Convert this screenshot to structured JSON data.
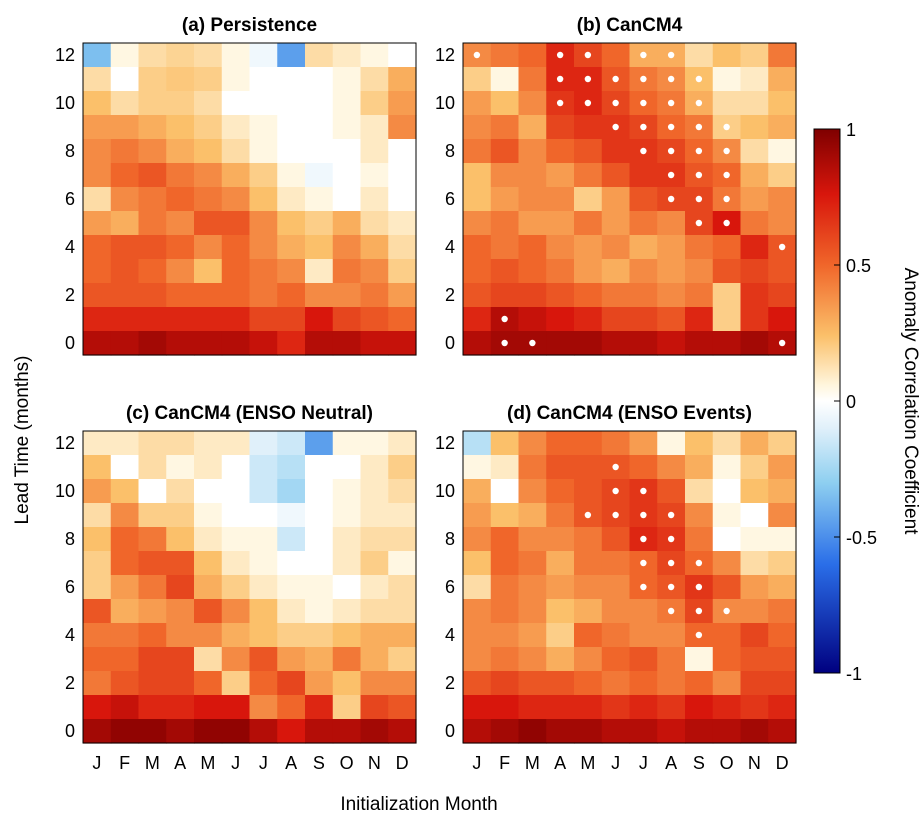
{
  "figure": {
    "ylabel": "Lead Time (months)",
    "xlabel": "Initialization Month",
    "colorbar_label": "Anomaly Correlation Coefficient"
  },
  "chart_data": {
    "type": "heatmap",
    "months": [
      "J",
      "F",
      "M",
      "A",
      "M",
      "J",
      "J",
      "A",
      "S",
      "O",
      "N",
      "D"
    ],
    "yticks": [
      "0",
      "2",
      "4",
      "6",
      "8",
      "10",
      "12"
    ],
    "ylim": [
      0,
      12
    ],
    "colorbar": {
      "ticks": [
        "1",
        "0.5",
        "0",
        "-0.5",
        "-1"
      ],
      "min": -1,
      "max": 1,
      "colormap": "blue-white-red"
    },
    "panels": [
      {
        "title": "(a) Persistence",
        "note": "rows from lead 12 (top) to lead 0 (bottom)",
        "values": [
          [
            -0.35,
            0.05,
            0.15,
            0.18,
            0.15,
            0.05,
            -0.05,
            -0.45,
            0.15,
            0.1,
            0.05,
            0.0
          ],
          [
            0.15,
            0.0,
            0.2,
            0.22,
            0.2,
            0.05,
            0.0,
            0.0,
            0.0,
            0.05,
            0.15,
            0.3
          ],
          [
            0.25,
            0.15,
            0.2,
            0.2,
            0.15,
            0.0,
            0.0,
            0.0,
            0.0,
            0.05,
            0.2,
            0.35
          ],
          [
            0.35,
            0.35,
            0.3,
            0.25,
            0.2,
            0.1,
            0.05,
            0.0,
            0.0,
            0.05,
            0.1,
            0.4
          ],
          [
            0.4,
            0.45,
            0.4,
            0.3,
            0.25,
            0.15,
            0.05,
            0.0,
            0.0,
            0.0,
            0.1,
            0.0
          ],
          [
            0.4,
            0.5,
            0.55,
            0.45,
            0.4,
            0.3,
            0.2,
            0.05,
            -0.05,
            0.0,
            0.05,
            0.0
          ],
          [
            0.15,
            0.4,
            0.45,
            0.5,
            0.45,
            0.4,
            0.25,
            0.1,
            0.05,
            0.0,
            0.1,
            0.0
          ],
          [
            0.35,
            0.3,
            0.45,
            0.4,
            0.55,
            0.55,
            0.4,
            0.25,
            0.2,
            0.3,
            0.15,
            0.1
          ],
          [
            0.5,
            0.55,
            0.55,
            0.5,
            0.4,
            0.5,
            0.4,
            0.3,
            0.25,
            0.4,
            0.3,
            0.15
          ],
          [
            0.5,
            0.55,
            0.5,
            0.4,
            0.25,
            0.5,
            0.45,
            0.4,
            0.1,
            0.45,
            0.4,
            0.2
          ],
          [
            0.55,
            0.55,
            0.55,
            0.5,
            0.5,
            0.5,
            0.45,
            0.5,
            0.4,
            0.4,
            0.45,
            0.35
          ],
          [
            0.7,
            0.7,
            0.7,
            0.7,
            0.7,
            0.7,
            0.6,
            0.6,
            0.75,
            0.6,
            0.55,
            0.5
          ],
          [
            0.85,
            0.85,
            0.9,
            0.85,
            0.85,
            0.85,
            0.8,
            0.7,
            0.85,
            0.85,
            0.8,
            0.8
          ]
        ],
        "dots": []
      },
      {
        "title": "(b) CanCM4",
        "values": [
          [
            0.4,
            0.45,
            0.5,
            0.7,
            0.6,
            0.5,
            0.3,
            0.3,
            0.15,
            0.25,
            0.2,
            0.45
          ],
          [
            0.2,
            0.05,
            0.45,
            0.7,
            0.7,
            0.55,
            0.45,
            0.4,
            0.25,
            0.05,
            0.1,
            0.3
          ],
          [
            0.35,
            0.25,
            0.4,
            0.65,
            0.7,
            0.6,
            0.5,
            0.45,
            0.3,
            0.15,
            0.15,
            0.25
          ],
          [
            0.4,
            0.45,
            0.3,
            0.6,
            0.65,
            0.65,
            0.6,
            0.5,
            0.45,
            0.2,
            0.25,
            0.3
          ],
          [
            0.45,
            0.55,
            0.4,
            0.5,
            0.55,
            0.65,
            0.65,
            0.6,
            0.5,
            0.4,
            0.15,
            0.05
          ],
          [
            0.25,
            0.4,
            0.4,
            0.35,
            0.45,
            0.55,
            0.65,
            0.65,
            0.55,
            0.5,
            0.3,
            0.2
          ],
          [
            0.25,
            0.35,
            0.4,
            0.4,
            0.2,
            0.35,
            0.55,
            0.6,
            0.6,
            0.45,
            0.35,
            0.4
          ],
          [
            0.4,
            0.45,
            0.35,
            0.35,
            0.45,
            0.35,
            0.45,
            0.4,
            0.6,
            0.75,
            0.45,
            0.4
          ],
          [
            0.5,
            0.45,
            0.5,
            0.4,
            0.35,
            0.4,
            0.3,
            0.35,
            0.45,
            0.5,
            0.7,
            0.55
          ],
          [
            0.5,
            0.55,
            0.5,
            0.45,
            0.35,
            0.3,
            0.4,
            0.35,
            0.4,
            0.55,
            0.6,
            0.55
          ],
          [
            0.55,
            0.6,
            0.6,
            0.55,
            0.5,
            0.45,
            0.45,
            0.4,
            0.45,
            0.2,
            0.65,
            0.6
          ],
          [
            0.7,
            0.85,
            0.8,
            0.75,
            0.7,
            0.6,
            0.6,
            0.55,
            0.7,
            0.2,
            0.65,
            0.75
          ],
          [
            0.85,
            0.9,
            0.9,
            0.9,
            0.9,
            0.85,
            0.85,
            0.8,
            0.85,
            0.85,
            0.9,
            0.85
          ]
        ],
        "dots": [
          [
            12,
            0
          ],
          [
            12,
            3
          ],
          [
            12,
            4
          ],
          [
            12,
            6
          ],
          [
            12,
            7
          ],
          [
            11,
            3
          ],
          [
            11,
            4
          ],
          [
            11,
            5
          ],
          [
            11,
            6
          ],
          [
            11,
            7
          ],
          [
            11,
            8
          ],
          [
            10,
            3
          ],
          [
            10,
            4
          ],
          [
            10,
            5
          ],
          [
            10,
            6
          ],
          [
            10,
            7
          ],
          [
            10,
            8
          ],
          [
            9,
            5
          ],
          [
            9,
            6
          ],
          [
            9,
            7
          ],
          [
            9,
            8
          ],
          [
            9,
            9
          ],
          [
            8,
            6
          ],
          [
            8,
            7
          ],
          [
            8,
            8
          ],
          [
            8,
            9
          ],
          [
            7,
            7
          ],
          [
            7,
            8
          ],
          [
            7,
            9
          ],
          [
            6,
            7
          ],
          [
            6,
            8
          ],
          [
            6,
            9
          ],
          [
            5,
            8
          ],
          [
            5,
            9
          ],
          [
            4,
            11
          ],
          [
            1,
            1
          ],
          [
            0,
            1
          ],
          [
            0,
            2
          ],
          [
            0,
            11
          ]
        ]
      },
      {
        "title": "(c) CanCM4 (ENSO Neutral)",
        "values": [
          [
            0.1,
            0.1,
            0.15,
            0.15,
            0.1,
            0.1,
            -0.1,
            -0.15,
            -0.45,
            0.05,
            0.05,
            0.1
          ],
          [
            0.25,
            0.0,
            0.15,
            0.05,
            0.1,
            0.0,
            -0.15,
            -0.2,
            0.0,
            0.0,
            0.1,
            0.2
          ],
          [
            0.35,
            0.25,
            0.0,
            0.15,
            0.0,
            0.0,
            -0.15,
            -0.25,
            0.0,
            0.05,
            0.1,
            0.15
          ],
          [
            0.15,
            0.4,
            0.2,
            0.2,
            0.05,
            0.0,
            0.0,
            -0.05,
            0.0,
            0.05,
            0.1,
            0.1
          ],
          [
            0.25,
            0.5,
            0.45,
            0.25,
            0.1,
            0.05,
            0.05,
            -0.15,
            0.0,
            0.1,
            0.15,
            0.15
          ],
          [
            0.2,
            0.5,
            0.55,
            0.55,
            0.25,
            0.1,
            0.05,
            0.0,
            0.0,
            0.1,
            0.2,
            0.05
          ],
          [
            0.2,
            0.35,
            0.45,
            0.6,
            0.3,
            0.2,
            0.1,
            0.05,
            0.05,
            0.0,
            0.1,
            0.15
          ],
          [
            0.55,
            0.3,
            0.35,
            0.4,
            0.55,
            0.4,
            0.25,
            0.1,
            0.05,
            0.1,
            0.15,
            0.15
          ],
          [
            0.45,
            0.45,
            0.5,
            0.4,
            0.4,
            0.3,
            0.25,
            0.2,
            0.2,
            0.25,
            0.3,
            0.3
          ],
          [
            0.5,
            0.5,
            0.6,
            0.6,
            0.15,
            0.4,
            0.55,
            0.35,
            0.3,
            0.45,
            0.3,
            0.2
          ],
          [
            0.45,
            0.55,
            0.6,
            0.6,
            0.5,
            0.2,
            0.5,
            0.6,
            0.35,
            0.25,
            0.4,
            0.4
          ],
          [
            0.75,
            0.8,
            0.7,
            0.7,
            0.75,
            0.75,
            0.4,
            0.5,
            0.7,
            0.2,
            0.6,
            0.55
          ],
          [
            0.9,
            0.95,
            0.95,
            0.9,
            0.95,
            0.95,
            0.85,
            0.75,
            0.85,
            0.85,
            0.9,
            0.85
          ]
        ],
        "dots": []
      },
      {
        "title": "(d) CanCM4 (ENSO Events)",
        "values": [
          [
            -0.2,
            0.25,
            0.4,
            0.5,
            0.5,
            0.45,
            0.35,
            0.05,
            0.25,
            0.15,
            0.3,
            0.2
          ],
          [
            0.05,
            0.1,
            0.45,
            0.55,
            0.55,
            0.55,
            0.5,
            0.4,
            0.3,
            0.05,
            0.2,
            0.35
          ],
          [
            0.3,
            0.0,
            0.4,
            0.5,
            0.55,
            0.6,
            0.65,
            0.55,
            0.15,
            0.0,
            0.25,
            0.3
          ],
          [
            0.35,
            0.25,
            0.3,
            0.45,
            0.55,
            0.6,
            0.65,
            0.6,
            0.4,
            0.05,
            0.0,
            0.4
          ],
          [
            0.4,
            0.5,
            0.4,
            0.4,
            0.45,
            0.55,
            0.7,
            0.65,
            0.45,
            0.0,
            0.05,
            0.05
          ],
          [
            0.25,
            0.5,
            0.45,
            0.3,
            0.45,
            0.45,
            0.5,
            0.6,
            0.5,
            0.4,
            0.15,
            0.2
          ],
          [
            0.15,
            0.45,
            0.4,
            0.35,
            0.4,
            0.4,
            0.5,
            0.55,
            0.65,
            0.55,
            0.35,
            0.3
          ],
          [
            0.4,
            0.45,
            0.4,
            0.25,
            0.3,
            0.4,
            0.4,
            0.45,
            0.6,
            0.4,
            0.4,
            0.45
          ],
          [
            0.4,
            0.4,
            0.35,
            0.2,
            0.5,
            0.45,
            0.4,
            0.4,
            0.5,
            0.5,
            0.6,
            0.5
          ],
          [
            0.4,
            0.45,
            0.4,
            0.3,
            0.4,
            0.5,
            0.55,
            0.45,
            0.05,
            0.5,
            0.55,
            0.55
          ],
          [
            0.55,
            0.6,
            0.55,
            0.55,
            0.5,
            0.45,
            0.5,
            0.45,
            0.5,
            0.4,
            0.6,
            0.6
          ],
          [
            0.75,
            0.75,
            0.7,
            0.7,
            0.7,
            0.65,
            0.7,
            0.65,
            0.75,
            0.7,
            0.65,
            0.7
          ],
          [
            0.85,
            0.9,
            0.95,
            0.9,
            0.9,
            0.85,
            0.85,
            0.8,
            0.85,
            0.85,
            0.9,
            0.85
          ]
        ],
        "dots": [
          [
            11,
            5
          ],
          [
            10,
            5
          ],
          [
            10,
            6
          ],
          [
            9,
            4
          ],
          [
            9,
            5
          ],
          [
            9,
            6
          ],
          [
            9,
            7
          ],
          [
            8,
            6
          ],
          [
            8,
            7
          ],
          [
            7,
            6
          ],
          [
            7,
            7
          ],
          [
            7,
            8
          ],
          [
            6,
            6
          ],
          [
            6,
            7
          ],
          [
            6,
            8
          ],
          [
            5,
            7
          ],
          [
            5,
            8
          ],
          [
            5,
            9
          ],
          [
            4,
            8
          ]
        ]
      }
    ]
  }
}
